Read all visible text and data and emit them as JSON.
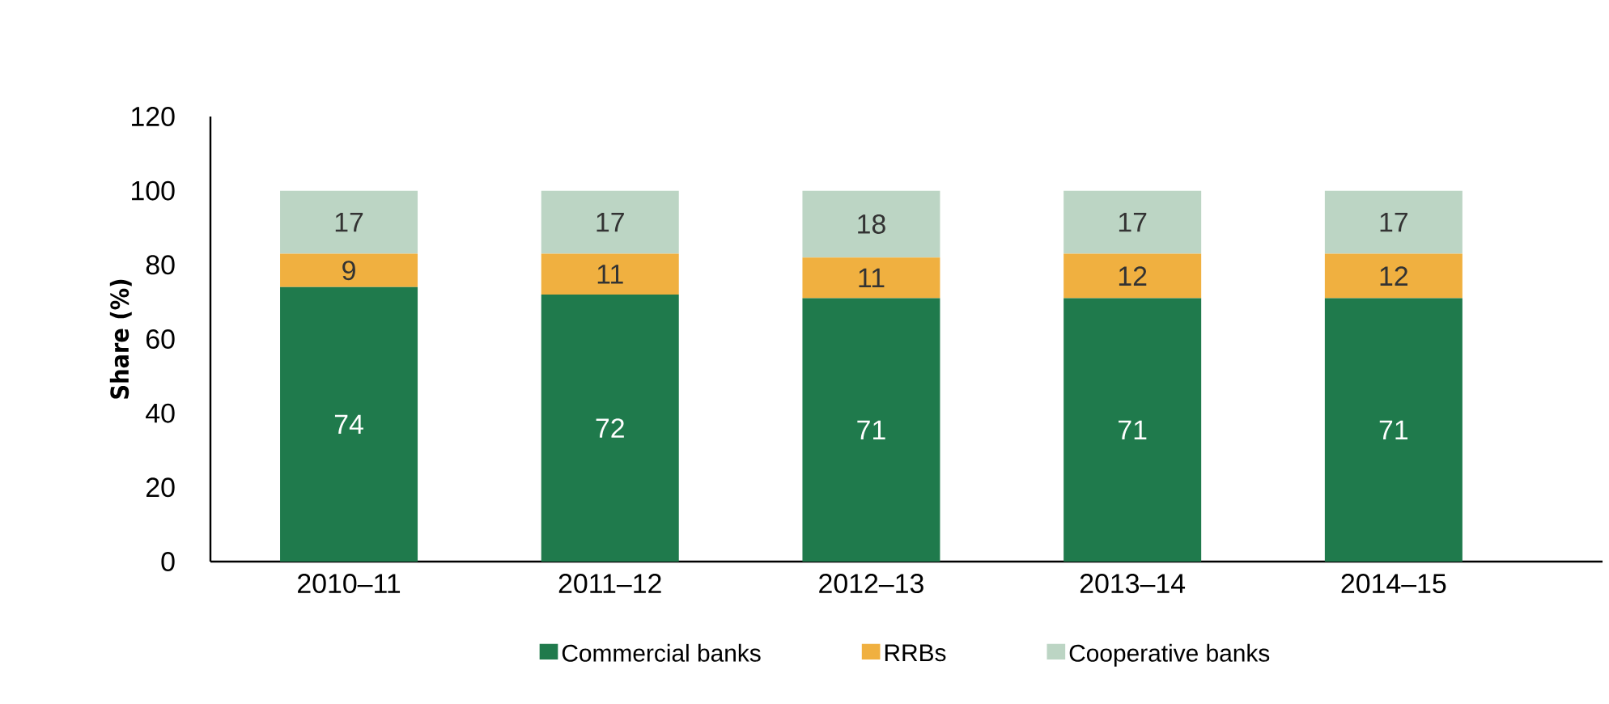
{
  "chart_data": {
    "type": "bar",
    "stacked": true,
    "ylabel": "Share (%)",
    "categories": [
      "2010–11",
      "2011–12",
      "2012–13",
      "2013–14",
      "2014–15"
    ],
    "series": [
      {
        "name": "Commercial banks",
        "color": "#1f7a4c",
        "values": [
          74,
          72,
          71,
          71,
          71
        ]
      },
      {
        "name": "RRBs",
        "color": "#f0b040",
        "values": [
          9,
          11,
          11,
          12,
          12
        ]
      },
      {
        "name": "Cooperative banks",
        "color": "#bcd5c4",
        "values": [
          17,
          17,
          18,
          17,
          17
        ]
      }
    ],
    "ylim": [
      0,
      120
    ],
    "yticks": [
      0,
      20,
      40,
      60,
      80,
      100,
      120
    ],
    "data_labels": true,
    "legend": "bottom",
    "grid": false
  }
}
